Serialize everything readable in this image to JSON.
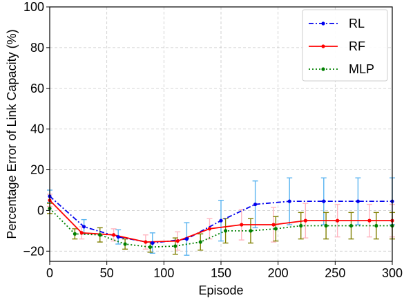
{
  "chart_data": {
    "type": "line",
    "xlabel": "Episode",
    "ylabel": "Percentage Error of Link Capacity (%)",
    "xlim": [
      0,
      300
    ],
    "ylim": [
      -25,
      100
    ],
    "xticks": [
      0,
      50,
      100,
      150,
      200,
      250,
      300
    ],
    "yticks": [
      -20,
      0,
      20,
      40,
      60,
      80,
      100
    ],
    "grid": true,
    "legend_position": "top-right",
    "series": [
      {
        "name": "RL",
        "color": "#0000ee",
        "dash": "dashdot",
        "errorbar_color": "#5ab4f0",
        "x": [
          0,
          30,
          60,
          90,
          120,
          150,
          180,
          210,
          240,
          270,
          300
        ],
        "y": [
          7,
          -8,
          -13,
          -16,
          -14,
          -5,
          3,
          4.5,
          4.5,
          4.5,
          4.5
        ],
        "err": [
          3,
          3.5,
          3.5,
          5,
          8,
          10,
          11.5,
          11.5,
          11.5,
          11.5,
          11.5
        ]
      },
      {
        "name": "RF",
        "color": "#ff0000",
        "dash": "solid",
        "errorbar_color": "#ffb6c1",
        "x": [
          0,
          28,
          56,
          84,
          112,
          140,
          168,
          196,
          224,
          252,
          280,
          300
        ],
        "y": [
          5,
          -11,
          -12,
          -15.5,
          -15,
          -9,
          -7,
          -7,
          -5,
          -5,
          -5,
          -5
        ],
        "err": [
          3,
          3,
          3,
          3.5,
          4.5,
          5,
          7.5,
          8.5,
          8.5,
          8,
          8,
          8
        ]
      },
      {
        "name": "MLP",
        "color": "#008000",
        "dash": "dotted",
        "errorbar_color": "#808000",
        "x": [
          0,
          22,
          44,
          66,
          88,
          110,
          132,
          154,
          176,
          198,
          220,
          242,
          264,
          286,
          300
        ],
        "y": [
          1,
          -11.5,
          -12,
          -16.5,
          -18,
          -17.5,
          -15.5,
          -10,
          -10,
          -9,
          -7.5,
          -7.5,
          -7.5,
          -7.5,
          -7.5
        ],
        "err": [
          2.5,
          2.5,
          3.5,
          2.5,
          2.5,
          4,
          4,
          6,
          6,
          6,
          6.5,
          6.5,
          6.5,
          6.5,
          6.5
        ]
      }
    ]
  }
}
